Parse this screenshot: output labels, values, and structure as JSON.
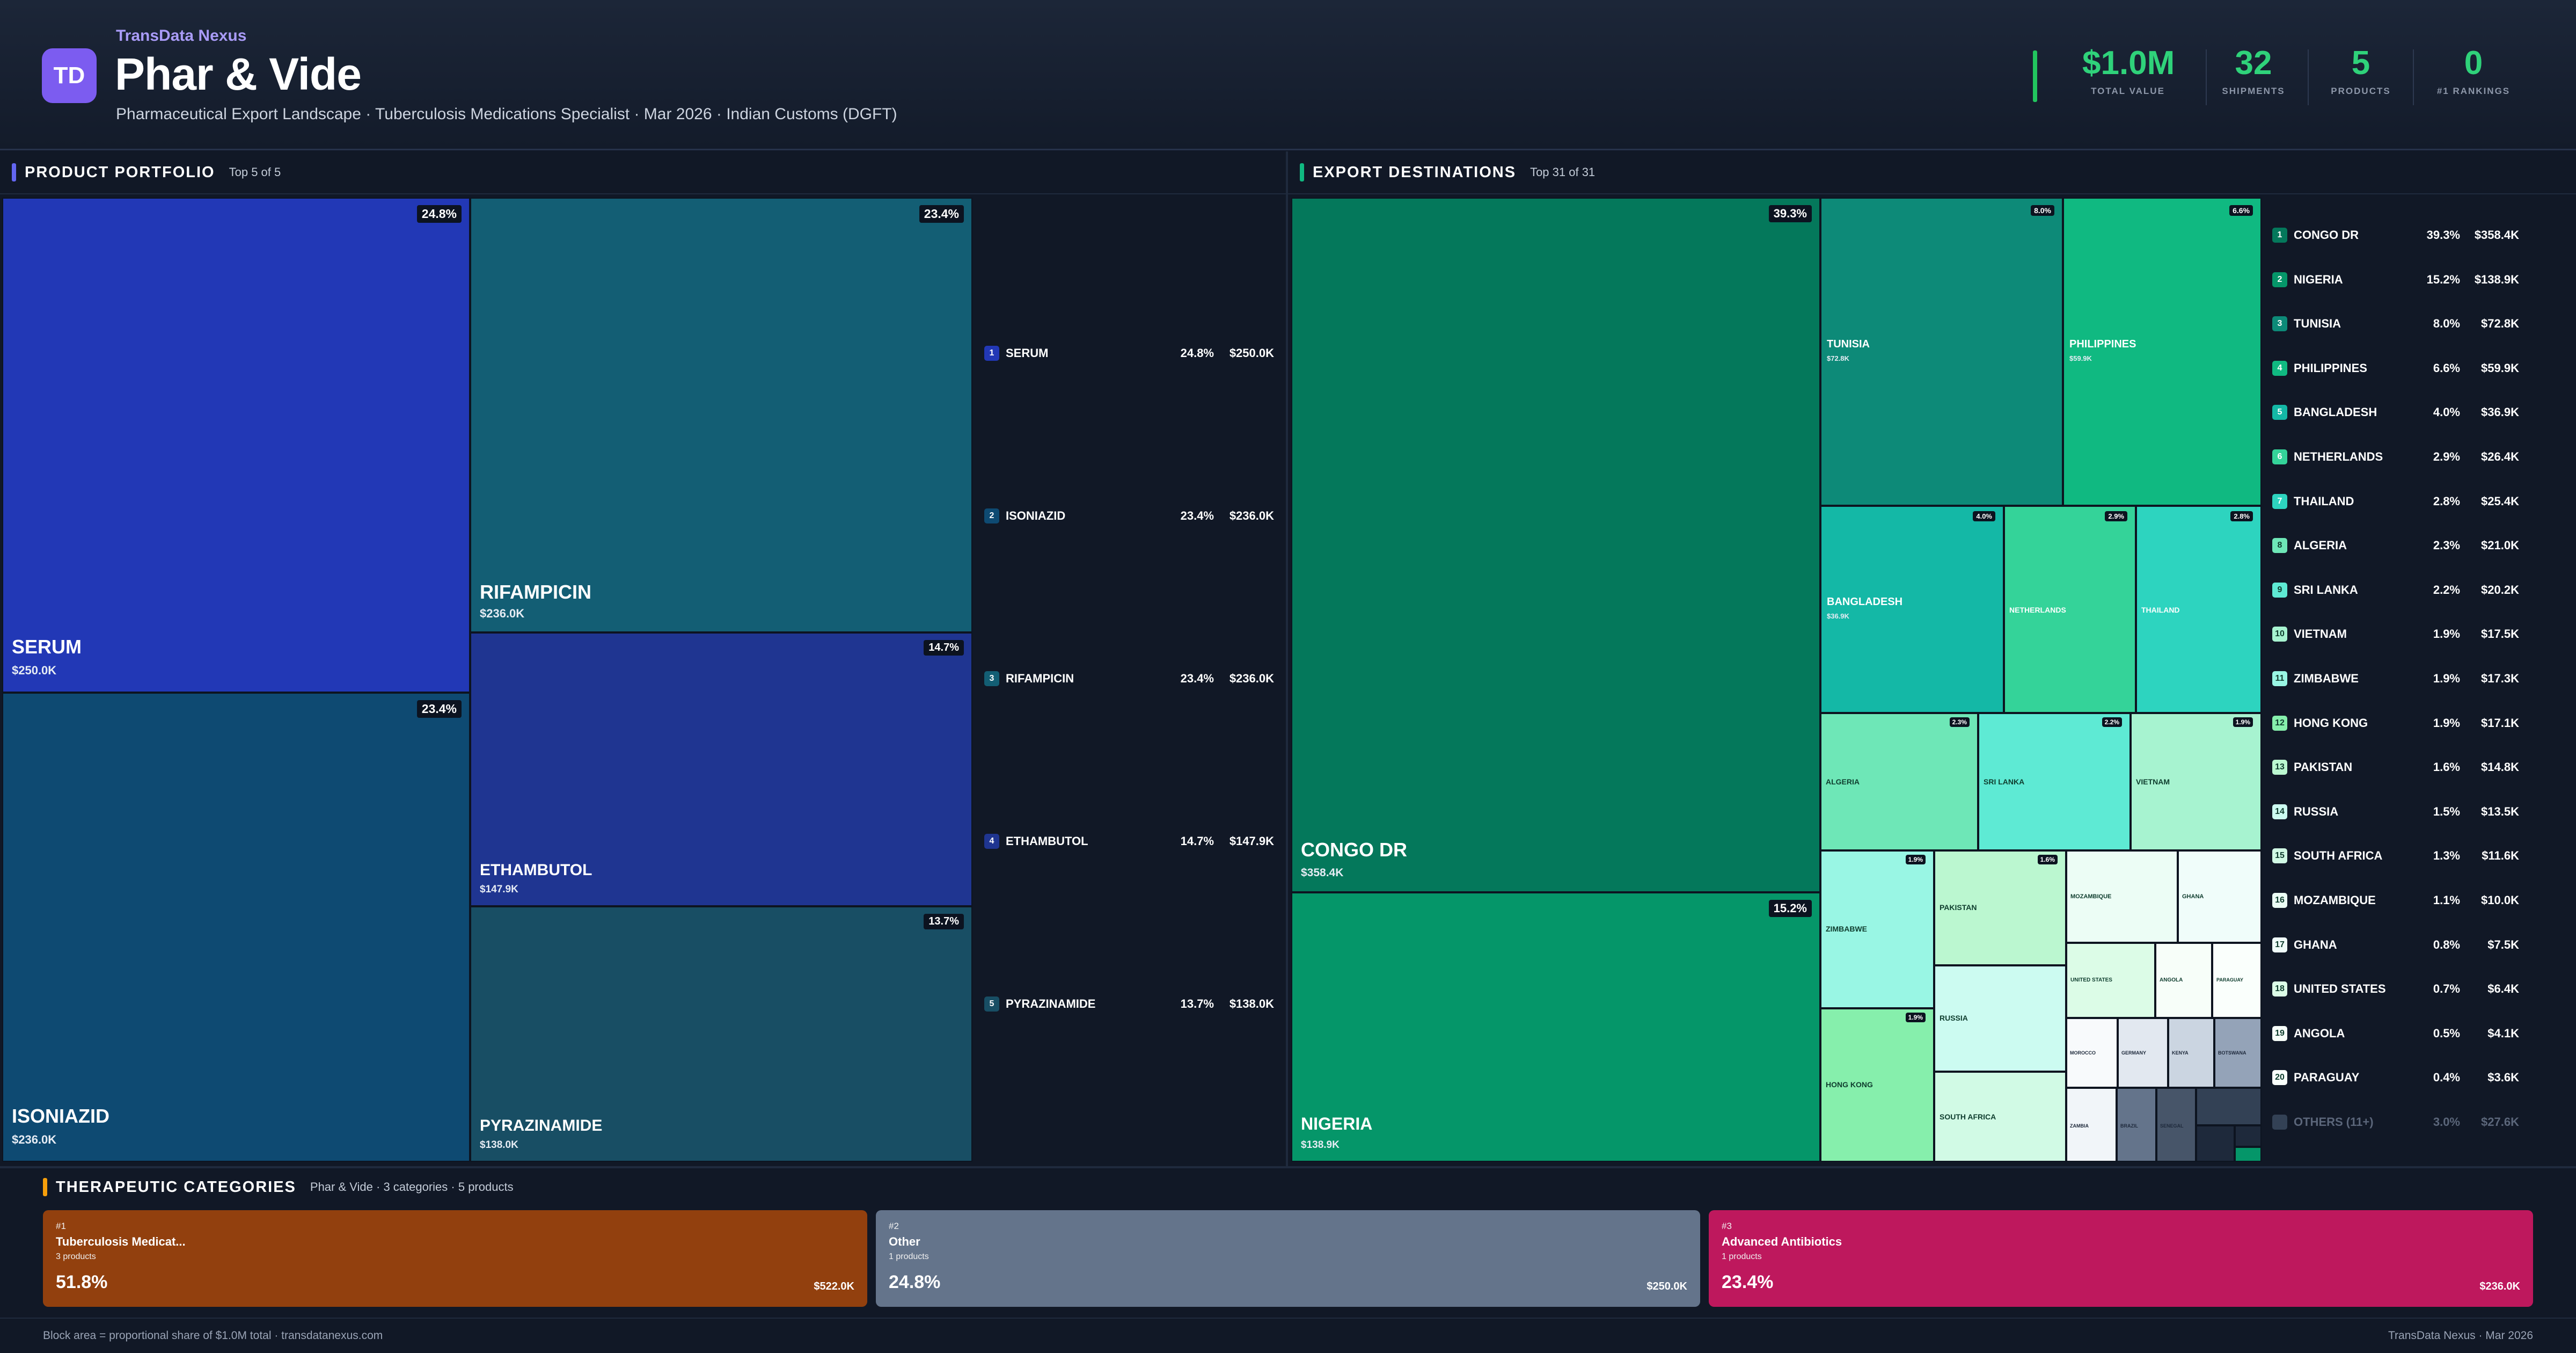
{
  "header": {
    "brand": "TransData Nexus",
    "logo": "TD",
    "title": "Phar & Vide",
    "subtitle": "Pharmaceutical Export Landscape · Tuberculosis Medications Specialist · Mar 2026 · Indian Customs (DGFT)"
  },
  "stats": [
    {
      "value": "$1.0M",
      "label": "TOTAL VALUE"
    },
    {
      "value": "32",
      "label": "SHIPMENTS"
    },
    {
      "value": "5",
      "label": "PRODUCTS"
    },
    {
      "value": "0",
      "label": "#1 RANKINGS"
    }
  ],
  "portfolio": {
    "title": "PRODUCT PORTFOLIO",
    "sub": "Top 5 of 5",
    "products": [
      {
        "rank": "1",
        "name": "SERUM",
        "pct": "24.8%",
        "value": "$250.0K",
        "color": "#2238b6"
      },
      {
        "rank": "2",
        "name": "ISONIAZID",
        "pct": "23.4%",
        "value": "$236.0K",
        "color": "#0e4a72"
      },
      {
        "rank": "3",
        "name": "RIFAMPICIN",
        "pct": "23.4%",
        "value": "$236.0K",
        "color": "#135e74"
      },
      {
        "rank": "4",
        "name": "ETHAMBUTOL",
        "pct": "14.7%",
        "value": "$147.9K",
        "color": "#1f3591"
      },
      {
        "rank": "5",
        "name": "PYRAZINAMIDE",
        "pct": "13.7%",
        "value": "$138.0K",
        "color": "#184e64"
      }
    ]
  },
  "destinations": {
    "title": "EXPORT DESTINATIONS",
    "sub": "Top 31 of 31",
    "countries": [
      {
        "rank": "1",
        "name": "CONGO DR",
        "pct": "39.3%",
        "value": "$358.4K",
        "color": "#04785b"
      },
      {
        "rank": "2",
        "name": "NIGERIA",
        "pct": "15.2%",
        "value": "$138.9K",
        "color": "#059669"
      },
      {
        "rank": "3",
        "name": "TUNISIA",
        "pct": "8.0%",
        "value": "$72.8K",
        "color": "#0d8a78"
      },
      {
        "rank": "4",
        "name": "PHILIPPINES",
        "pct": "6.6%",
        "value": "$59.9K",
        "color": "#10b981"
      },
      {
        "rank": "5",
        "name": "BANGLADESH",
        "pct": "4.0%",
        "value": "$36.9K",
        "color": "#14b8a6"
      },
      {
        "rank": "6",
        "name": "NETHERLANDS",
        "pct": "2.9%",
        "value": "$26.4K",
        "color": "#34d399"
      },
      {
        "rank": "7",
        "name": "THAILAND",
        "pct": "2.8%",
        "value": "$25.4K",
        "color": "#2dd4bf"
      },
      {
        "rank": "8",
        "name": "ALGERIA",
        "pct": "2.3%",
        "value": "$21.0K",
        "color": "#6ee7b7"
      },
      {
        "rank": "9",
        "name": "SRI LANKA",
        "pct": "2.2%",
        "value": "$20.2K",
        "color": "#5eead4"
      },
      {
        "rank": "10",
        "name": "VIETNAM",
        "pct": "1.9%",
        "value": "$17.5K",
        "color": "#a7f3d0"
      },
      {
        "rank": "11",
        "name": "ZIMBABWE",
        "pct": "1.9%",
        "value": "$17.3K",
        "color": "#99f6e4"
      },
      {
        "rank": "12",
        "name": "HONG KONG",
        "pct": "1.9%",
        "value": "$17.1K",
        "color": "#86efac"
      },
      {
        "rank": "13",
        "name": "PAKISTAN",
        "pct": "1.6%",
        "value": "$14.8K",
        "color": "#bbf7d0"
      },
      {
        "rank": "14",
        "name": "RUSSIA",
        "pct": "1.5%",
        "value": "$13.5K",
        "color": "#ccfbf1"
      },
      {
        "rank": "15",
        "name": "SOUTH AFRICA",
        "pct": "1.3%",
        "value": "$11.6K",
        "color": "#d1fae5"
      },
      {
        "rank": "16",
        "name": "MOZAMBIQUE",
        "pct": "1.1%",
        "value": "$10.0K",
        "color": "#ecfdf5"
      },
      {
        "rank": "17",
        "name": "GHANA",
        "pct": "0.8%",
        "value": "$7.5K",
        "color": "#f0fdfa"
      },
      {
        "rank": "18",
        "name": "UNITED STATES",
        "pct": "0.7%",
        "value": "$6.4K",
        "color": "#dcfce7"
      },
      {
        "rank": "19",
        "name": "ANGOLA",
        "pct": "0.5%",
        "value": "$4.1K",
        "color": "#f7fef9"
      },
      {
        "rank": "20",
        "name": "PARAGUAY",
        "pct": "0.4%",
        "value": "$3.6K",
        "color": "#fafffc"
      }
    ],
    "others": {
      "name": "OTHERS (11+)",
      "pct": "3.0%",
      "value": "$27.6K"
    },
    "small_tiles": [
      {
        "name": "MOROCCO",
        "color": "#f8fafc"
      },
      {
        "name": "GERMANY",
        "color": "#e2e8f0"
      },
      {
        "name": "KENYA",
        "color": "#cbd5e1"
      },
      {
        "name": "BOTSWANA",
        "color": "#94a3b8"
      },
      {
        "name": "ZAMBIA",
        "color": "#f1f5f9"
      },
      {
        "name": "BRAZIL",
        "color": "#64748b"
      },
      {
        "name": "SENEGAL",
        "color": "#475569"
      }
    ]
  },
  "categories": {
    "title": "THERAPEUTIC CATEGORIES",
    "sub": "Phar & Vide · 3 categories · 5 products",
    "items": [
      {
        "rank": "#1",
        "name": "Tuberculosis Medicat...",
        "count": "3 products",
        "pct": "51.8%",
        "value": "$522.0K",
        "color": "#92400e"
      },
      {
        "rank": "#2",
        "name": "Other",
        "count": "1 products",
        "pct": "24.8%",
        "value": "$250.0K",
        "color": "#64748b"
      },
      {
        "rank": "#3",
        "name": "Advanced Antibiotics",
        "count": "1 products",
        "pct": "23.4%",
        "value": "$236.0K",
        "color": "#be185d"
      }
    ]
  },
  "footer": {
    "left": "Block area = proportional share of $1.0M total · transdatanexus.com",
    "right": "TransData Nexus · Mar 2026"
  }
}
